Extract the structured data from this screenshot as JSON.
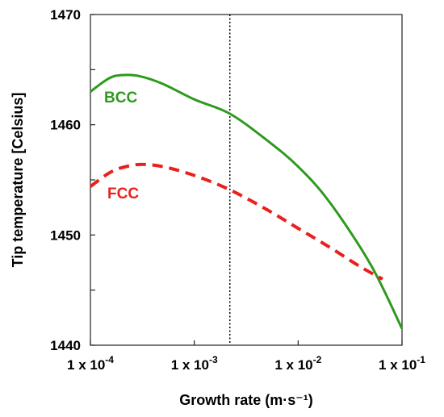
{
  "chart_data": {
    "type": "line",
    "title": "",
    "xlabel": "Growth rate (m·s⁻¹)",
    "ylabel": "Tip  temperature [Celsius]",
    "x_scale": "log",
    "xlim": [
      0.0001,
      0.1
    ],
    "ylim": [
      1440,
      1470
    ],
    "x_ticks": [
      {
        "value": 0.0001,
        "mantissa": "1 x 10",
        "exp": "-4"
      },
      {
        "value": 0.001,
        "mantissa": "1 x 10",
        "exp": "-3"
      },
      {
        "value": 0.01,
        "mantissa": "1 x 10",
        "exp": "-2"
      },
      {
        "value": 0.1,
        "mantissa": "1 x 10",
        "exp": "-1"
      }
    ],
    "y_ticks": [
      1440,
      1450,
      1460,
      1470
    ],
    "y_minor_ticks": [
      1445,
      1455,
      1465
    ],
    "grid": false,
    "legend": "none",
    "vertical_reference_line": {
      "x": 0.0022,
      "style": "dotted",
      "color": "#000000"
    },
    "series": [
      {
        "name": "BCC",
        "color": "#2e9a1e",
        "dash": "solid",
        "x": [
          0.0001,
          0.00015,
          0.0002,
          0.0003,
          0.0005,
          0.001,
          0.0022,
          0.005,
          0.01,
          0.02,
          0.05,
          0.1
        ],
        "y": [
          1463.0,
          1464.2,
          1464.5,
          1464.4,
          1463.7,
          1462.3,
          1461.0,
          1458.6,
          1456.2,
          1453.0,
          1447.3,
          1441.5
        ]
      },
      {
        "name": "FCC",
        "color": "#e8211c",
        "dash": "dashed",
        "x": [
          0.0001,
          0.00015,
          0.0002,
          0.0003,
          0.0005,
          0.001,
          0.0022,
          0.005,
          0.01,
          0.02,
          0.04,
          0.065
        ],
        "y": [
          1454.4,
          1455.6,
          1456.1,
          1456.4,
          1456.2,
          1455.4,
          1454.1,
          1452.3,
          1450.6,
          1448.9,
          1447.1,
          1446.0
        ]
      }
    ],
    "annotations": [
      {
        "text": "BCC",
        "series": "BCC"
      },
      {
        "text": "FCC",
        "series": "FCC"
      }
    ]
  }
}
